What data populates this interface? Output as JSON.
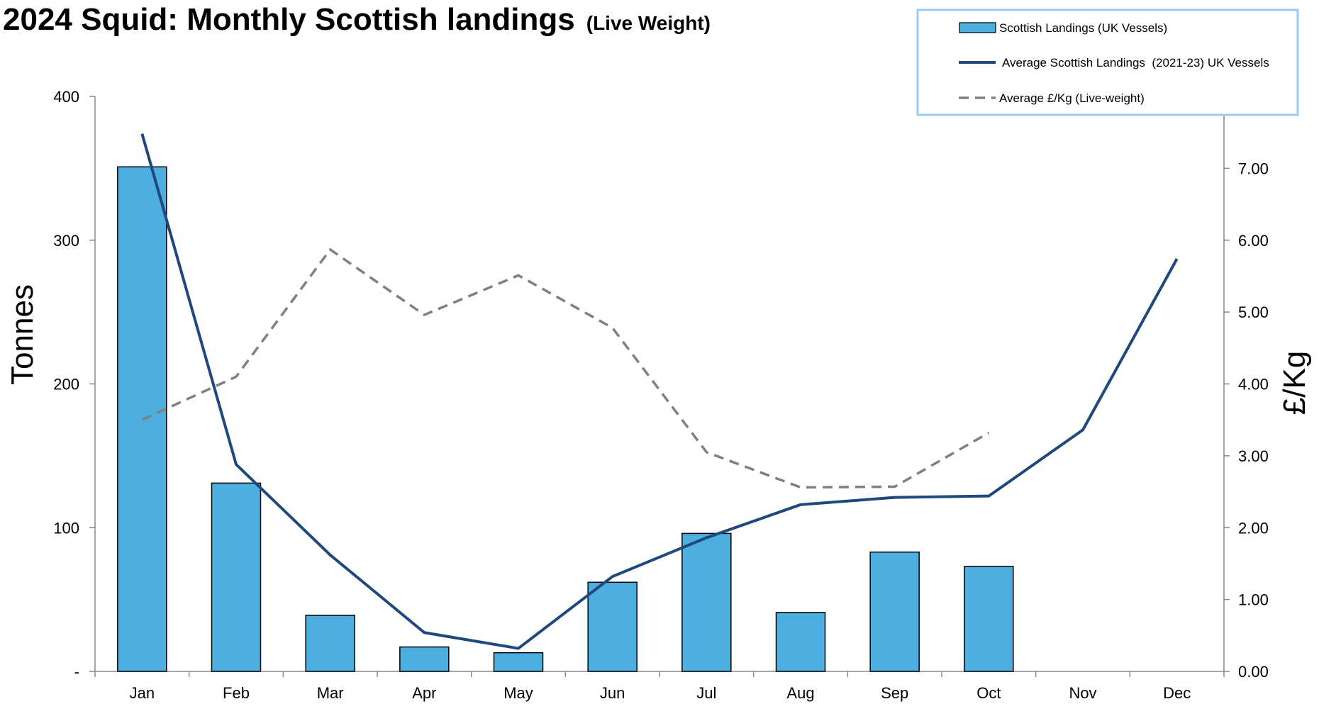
{
  "chart_data": {
    "type": "bar",
    "title": "2024 Squid: Monthly Scottish landings",
    "subtitle": "(Live Weight)",
    "categories": [
      "Jan",
      "Feb",
      "Mar",
      "Apr",
      "May",
      "Jun",
      "Jul",
      "Aug",
      "Sep",
      "Oct",
      "Nov",
      "Dec"
    ],
    "ylabel": "Tonnes",
    "y2label": "£/Kg",
    "ylim": [
      0,
      400
    ],
    "y2lim": [
      0,
      8
    ],
    "yticks": [
      "-",
      "100",
      "200",
      "300",
      "400"
    ],
    "yticks_values": [
      0,
      100,
      200,
      300,
      400
    ],
    "y2ticks": [
      "0.00",
      "1.00",
      "2.00",
      "3.00",
      "4.00",
      "5.00",
      "6.00",
      "7.00"
    ],
    "y2ticks_values": [
      0,
      1,
      2,
      3,
      4,
      5,
      6,
      7
    ],
    "legend_position": "top-right",
    "series": [
      {
        "name": "Scottish Landings (UK Vessels)",
        "kind": "bar",
        "axis": "left",
        "color": "#4DAEE0",
        "values": [
          351,
          131,
          39,
          17,
          13,
          62,
          96,
          41,
          83,
          73,
          null,
          null
        ]
      },
      {
        "name": "Average Scottish Landings  (2021-23) UK Vessels",
        "kind": "line",
        "axis": "left",
        "color": "#1F497D",
        "values": [
          374,
          144,
          81,
          27,
          16,
          66,
          93,
          116,
          121,
          122,
          168,
          287
        ]
      },
      {
        "name": "Average £/Kg (Live-weight)",
        "kind": "dashed-line",
        "axis": "right",
        "color": "#808080",
        "values": [
          3.5,
          4.1,
          5.87,
          4.96,
          5.51,
          4.78,
          3.05,
          2.56,
          2.57,
          3.32,
          null,
          null
        ]
      }
    ]
  }
}
